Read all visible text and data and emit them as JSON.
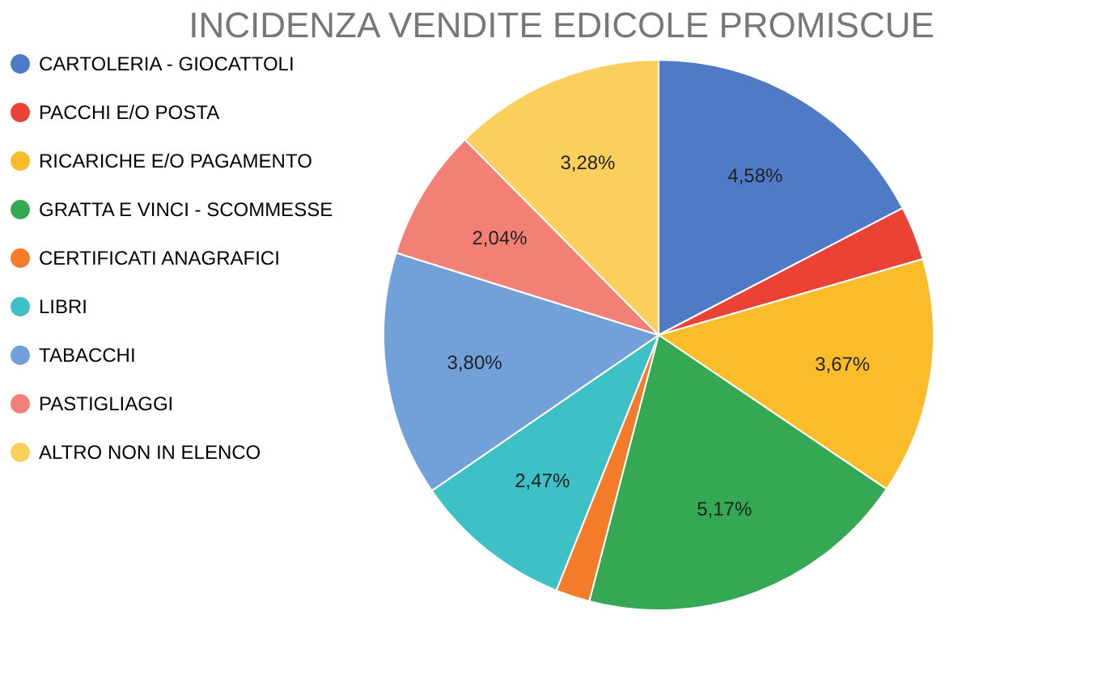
{
  "chart_data": {
    "type": "pie",
    "title": "INCIDENZA VENDITE EDICOLE PROMISCUE",
    "categories": [
      "CARTOLERIA - GIOCATTOLI",
      "PACCHI E/O POSTA",
      "RICARICHE E/O PAGAMENTO",
      "GRATTA E VINCI - SCOMMESSE",
      "CERTIFICATI ANAGRAFICI",
      "LIBRI",
      "TABACCHI",
      "PASTIGLIAGGI",
      "ALTRO NON IN ELENCO"
    ],
    "values": [
      4.58,
      0.84,
      3.67,
      5.17,
      0.53,
      2.47,
      3.8,
      2.04,
      3.28
    ],
    "value_labels": [
      "4,58%",
      null,
      "3,67%",
      "5,17%",
      null,
      "2,47%",
      "3,80%",
      "2,04%",
      "3,28%"
    ],
    "colors": [
      "#4e7ac7",
      "#ea4335",
      "#fbbc2a",
      "#34a853",
      "#f57c2b",
      "#3ec1c6",
      "#72a0d8",
      "#f28074",
      "#fbcf5c"
    ],
    "legend": "left"
  }
}
